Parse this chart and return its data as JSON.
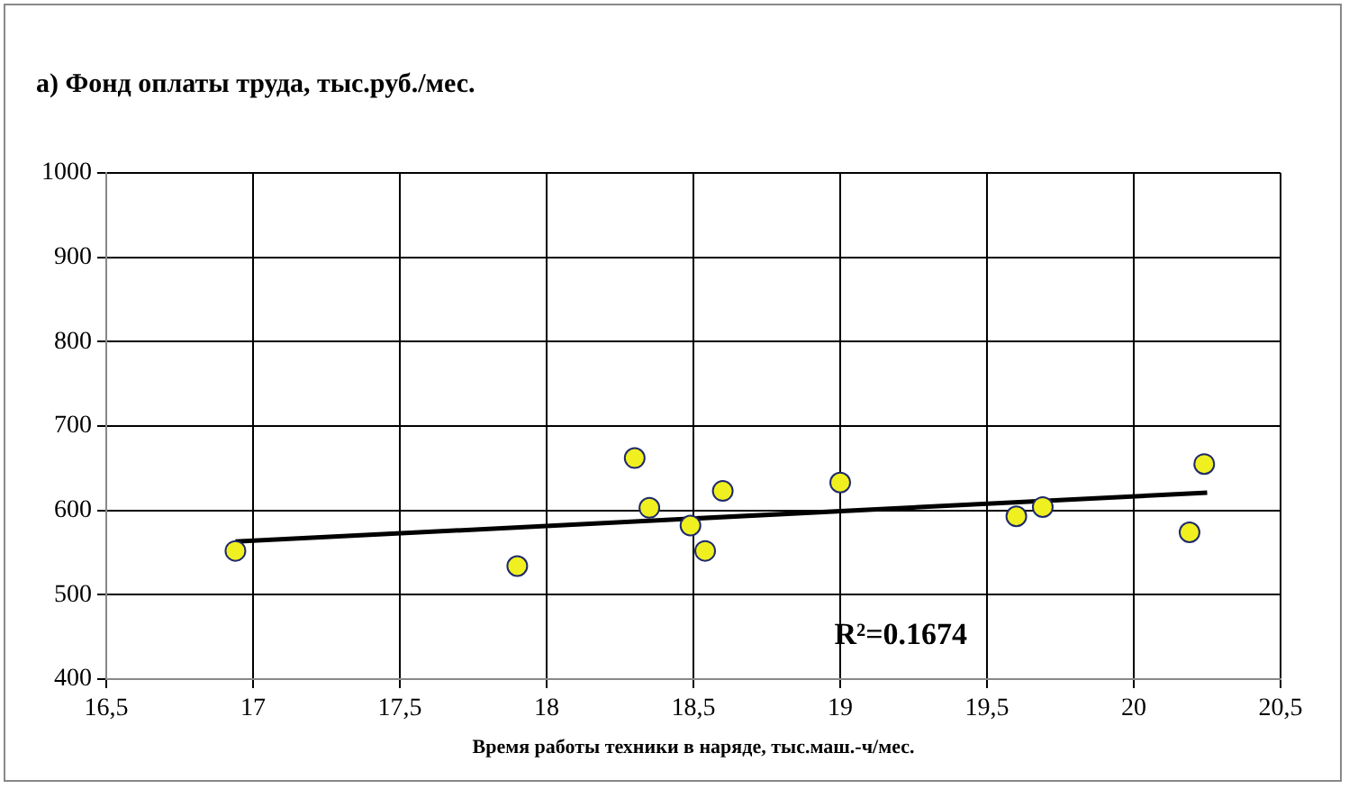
{
  "chart_data": {
    "type": "scatter",
    "title": "а) Фонд оплаты труда, тыс.руб./мес.",
    "xlabel": "Время работы техники в наряде, тыс.маш.-ч/мес.",
    "xlim": [
      16.5,
      20.5
    ],
    "xticks": [
      {
        "value": 16.5,
        "label": "16,5"
      },
      17,
      {
        "value": 17.5,
        "label": "17,5"
      },
      18,
      {
        "value": 18.5,
        "label": "18,5"
      },
      19,
      {
        "value": 19.5,
        "label": "19,5"
      },
      20,
      {
        "value": 20.5,
        "label": "20,5"
      }
    ],
    "ylim": [
      400,
      1000
    ],
    "yticks": [
      400,
      500,
      600,
      700,
      800,
      900,
      1000
    ],
    "grid": true,
    "legend": false,
    "marker": "circle",
    "series": [
      {
        "type": "scatter",
        "color": "#f0f020",
        "x": [
          16.94,
          17.9,
          18.3,
          18.35,
          18.49,
          18.54,
          18.6,
          19.0,
          19.6,
          19.69,
          20.19,
          20.24
        ],
        "values": [
          552,
          534,
          662,
          603,
          582,
          552,
          623,
          633,
          593,
          604,
          574,
          655
        ]
      },
      {
        "type": "line",
        "color": "#000000",
        "marker": "none",
        "x": [
          16.94,
          20.25
        ],
        "values": [
          563,
          621
        ]
      }
    ],
    "annotations": [
      "R²=0.1674"
    ]
  }
}
